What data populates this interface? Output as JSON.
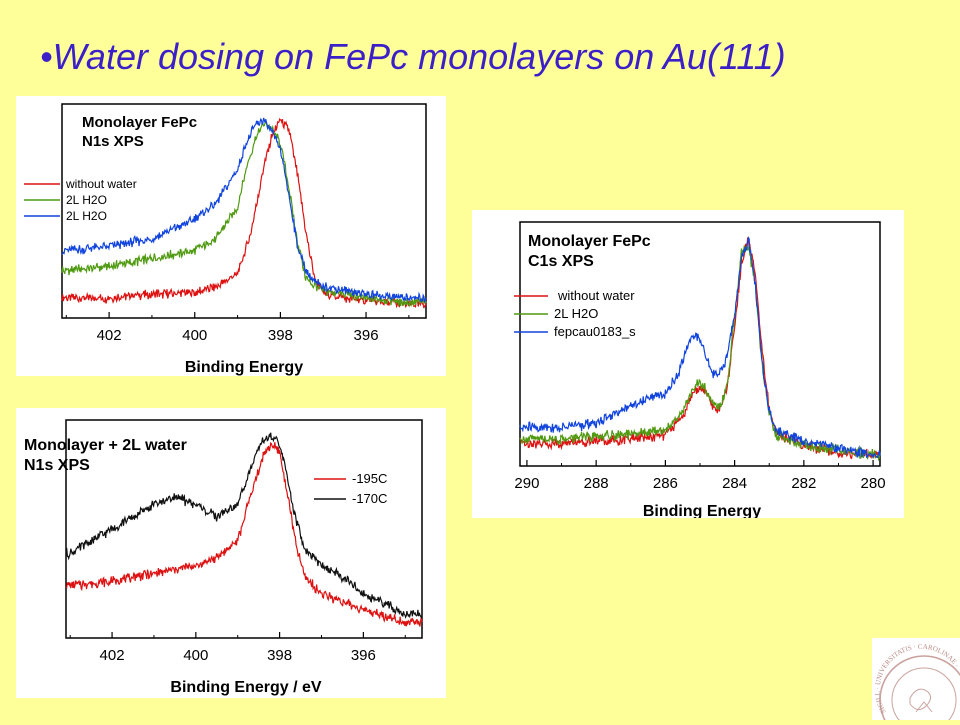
{
  "slide": {
    "title": "•Water dosing on FePc monolayers on Au(111)",
    "background": "#ffff99",
    "title_color": "#3b1fc8"
  },
  "seal": {
    "text": "SIGILL · UNIVERSITATIS · CAROLINAE · LUNDENSIS · AD · RVMQVE",
    "icon": "university-seal-icon"
  },
  "chart_data": [
    {
      "type": "line",
      "title": [
        "Monolayer FePc",
        "N1s XPS"
      ],
      "xlabel": "Binding Energy",
      "xlim": [
        403.1,
        394.6
      ],
      "ylim": [
        0,
        1.08
      ],
      "reversed_x": true,
      "x_ticks": [
        402,
        400,
        398,
        396
      ],
      "legend_position": "left",
      "series": [
        {
          "name": "without water",
          "color": "#dd1111",
          "points": [
            [
              403.0,
              0.1
            ],
            [
              402.0,
              0.1
            ],
            [
              401.0,
              0.12
            ],
            [
              400.0,
              0.13
            ],
            [
              399.5,
              0.16
            ],
            [
              399.0,
              0.22
            ],
            [
              398.7,
              0.42
            ],
            [
              398.4,
              0.75
            ],
            [
              398.2,
              0.92
            ],
            [
              398.0,
              1.0
            ],
            [
              397.8,
              0.95
            ],
            [
              397.6,
              0.72
            ],
            [
              397.4,
              0.42
            ],
            [
              397.2,
              0.2
            ],
            [
              397.0,
              0.13
            ],
            [
              396.5,
              0.1
            ],
            [
              396.0,
              0.09
            ],
            [
              395.0,
              0.07
            ]
          ]
        },
        {
          "name": "2L H2O",
          "color": "#4f9a10",
          "points": [
            [
              403.0,
              0.24
            ],
            [
              402.0,
              0.26
            ],
            [
              401.0,
              0.3
            ],
            [
              400.0,
              0.34
            ],
            [
              399.5,
              0.4
            ],
            [
              399.0,
              0.56
            ],
            [
              398.8,
              0.75
            ],
            [
              398.6,
              0.9
            ],
            [
              398.4,
              0.98
            ],
            [
              398.2,
              0.96
            ],
            [
              398.0,
              0.88
            ],
            [
              397.8,
              0.66
            ],
            [
              397.6,
              0.38
            ],
            [
              397.4,
              0.2
            ],
            [
              397.2,
              0.16
            ],
            [
              397.0,
              0.14
            ],
            [
              396.5,
              0.12
            ],
            [
              396.0,
              0.1
            ],
            [
              395.0,
              0.08
            ]
          ]
        },
        {
          "name": "2L H2O",
          "color": "#1144dd",
          "points": [
            [
              403.0,
              0.34
            ],
            [
              402.0,
              0.36
            ],
            [
              401.0,
              0.4
            ],
            [
              400.0,
              0.5
            ],
            [
              399.5,
              0.58
            ],
            [
              399.0,
              0.75
            ],
            [
              398.8,
              0.88
            ],
            [
              398.6,
              0.97
            ],
            [
              398.4,
              1.0
            ],
            [
              398.2,
              0.94
            ],
            [
              398.0,
              0.85
            ],
            [
              397.8,
              0.62
            ],
            [
              397.6,
              0.36
            ],
            [
              397.4,
              0.24
            ],
            [
              397.2,
              0.18
            ],
            [
              397.0,
              0.16
            ],
            [
              396.5,
              0.14
            ],
            [
              396.0,
              0.12
            ],
            [
              395.0,
              0.1
            ]
          ]
        }
      ]
    },
    {
      "type": "line",
      "title": [
        "Monolayer + 2L water",
        "N1s XPS"
      ],
      "xlabel": "Binding Energy   /   eV",
      "xlim": [
        403.1,
        394.6
      ],
      "ylim": [
        0,
        1.08
      ],
      "reversed_x": true,
      "x_ticks": [
        402,
        400,
        398,
        396
      ],
      "legend_position": "top-right",
      "series": [
        {
          "name": "-195C",
          "color": "#dd1111",
          "points": [
            [
              403.0,
              0.26
            ],
            [
              402.0,
              0.28
            ],
            [
              401.0,
              0.32
            ],
            [
              400.0,
              0.36
            ],
            [
              399.5,
              0.4
            ],
            [
              399.0,
              0.48
            ],
            [
              398.7,
              0.7
            ],
            [
              398.4,
              0.9
            ],
            [
              398.2,
              0.96
            ],
            [
              398.0,
              0.92
            ],
            [
              397.8,
              0.7
            ],
            [
              397.6,
              0.45
            ],
            [
              397.4,
              0.3
            ],
            [
              397.0,
              0.22
            ],
            [
              396.5,
              0.18
            ],
            [
              396.0,
              0.14
            ],
            [
              395.0,
              0.08
            ]
          ]
        },
        {
          "name": "-170C",
          "color": "#111111",
          "points": [
            [
              403.0,
              0.42
            ],
            [
              402.0,
              0.54
            ],
            [
              401.5,
              0.6
            ],
            [
              401.0,
              0.66
            ],
            [
              400.5,
              0.7
            ],
            [
              400.0,
              0.66
            ],
            [
              399.5,
              0.6
            ],
            [
              399.0,
              0.66
            ],
            [
              398.7,
              0.84
            ],
            [
              398.4,
              0.98
            ],
            [
              398.2,
              1.0
            ],
            [
              398.0,
              0.96
            ],
            [
              397.8,
              0.78
            ],
            [
              397.6,
              0.58
            ],
            [
              397.4,
              0.44
            ],
            [
              397.0,
              0.36
            ],
            [
              396.5,
              0.3
            ],
            [
              396.0,
              0.22
            ],
            [
              395.0,
              0.12
            ]
          ]
        }
      ]
    },
    {
      "type": "line",
      "title": [
        "Monolayer FePc",
        "C1s XPS"
      ],
      "xlabel": "Binding Energy",
      "xlim": [
        290.2,
        279.8
      ],
      "ylim": [
        0,
        1.08
      ],
      "reversed_x": true,
      "x_ticks": [
        290,
        288,
        286,
        284,
        282,
        280
      ],
      "legend_position": "left",
      "series": [
        {
          "name": "without water",
          "color": "#dd1111",
          "points": [
            [
              290.0,
              0.1
            ],
            [
              289.0,
              0.1
            ],
            [
              288.0,
              0.11
            ],
            [
              287.0,
              0.12
            ],
            [
              286.0,
              0.14
            ],
            [
              285.5,
              0.22
            ],
            [
              285.2,
              0.32
            ],
            [
              285.0,
              0.35
            ],
            [
              284.8,
              0.32
            ],
            [
              284.6,
              0.26
            ],
            [
              284.4,
              0.25
            ],
            [
              284.2,
              0.36
            ],
            [
              284.0,
              0.62
            ],
            [
              283.8,
              0.9
            ],
            [
              283.6,
              1.0
            ],
            [
              283.4,
              0.85
            ],
            [
              283.2,
              0.5
            ],
            [
              283.0,
              0.25
            ],
            [
              282.8,
              0.15
            ],
            [
              282.0,
              0.09
            ],
            [
              281.0,
              0.06
            ],
            [
              280.0,
              0.05
            ]
          ]
        },
        {
          "name": "2L H2O",
          "color": "#4f9a10",
          "points": [
            [
              290.0,
              0.12
            ],
            [
              289.0,
              0.12
            ],
            [
              288.0,
              0.13
            ],
            [
              287.0,
              0.14
            ],
            [
              286.0,
              0.16
            ],
            [
              285.5,
              0.24
            ],
            [
              285.2,
              0.34
            ],
            [
              285.0,
              0.37
            ],
            [
              284.8,
              0.33
            ],
            [
              284.6,
              0.27
            ],
            [
              284.4,
              0.26
            ],
            [
              284.2,
              0.38
            ],
            [
              284.0,
              0.66
            ],
            [
              283.8,
              0.95
            ],
            [
              283.6,
              0.98
            ],
            [
              283.4,
              0.78
            ],
            [
              283.2,
              0.45
            ],
            [
              283.0,
              0.22
            ],
            [
              282.8,
              0.14
            ],
            [
              282.0,
              0.09
            ],
            [
              281.0,
              0.07
            ],
            [
              280.0,
              0.05
            ]
          ]
        },
        {
          "name": "fepcau0183_s",
          "color": "#1144dd",
          "points": [
            [
              290.0,
              0.17
            ],
            [
              289.0,
              0.17
            ],
            [
              288.0,
              0.19
            ],
            [
              287.0,
              0.27
            ],
            [
              286.5,
              0.3
            ],
            [
              286.0,
              0.32
            ],
            [
              285.6,
              0.42
            ],
            [
              285.3,
              0.56
            ],
            [
              285.1,
              0.58
            ],
            [
              284.9,
              0.52
            ],
            [
              284.7,
              0.43
            ],
            [
              284.5,
              0.39
            ],
            [
              284.3,
              0.44
            ],
            [
              284.0,
              0.66
            ],
            [
              283.8,
              0.92
            ],
            [
              283.6,
              1.0
            ],
            [
              283.4,
              0.8
            ],
            [
              283.2,
              0.45
            ],
            [
              283.0,
              0.24
            ],
            [
              282.8,
              0.16
            ],
            [
              282.0,
              0.11
            ],
            [
              281.0,
              0.08
            ],
            [
              280.0,
              0.05
            ]
          ]
        }
      ]
    }
  ]
}
